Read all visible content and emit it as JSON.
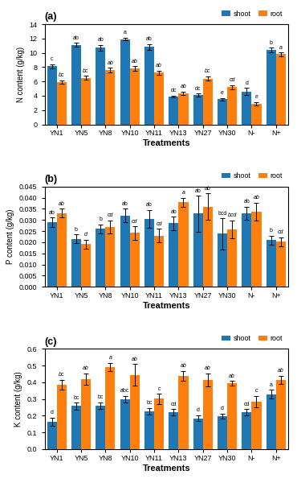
{
  "chart_data": [
    {
      "type": "bar",
      "title": "(a)",
      "x_label": "Treatments",
      "y_label": "N content (g/kg)",
      "categories": [
        "YN1",
        "YN5",
        "YN8",
        "YN10",
        "YN11",
        "YN13",
        "YN27",
        "YN30",
        "N-",
        "N+"
      ],
      "series": [
        {
          "name": "shoot",
          "values": [
            8.1,
            11.1,
            10.7,
            11.9,
            10.8,
            3.9,
            4.1,
            3.5,
            4.6,
            10.4
          ],
          "errors": [
            0.3,
            0.3,
            0.4,
            0.2,
            0.4,
            0.15,
            0.2,
            0.2,
            0.5,
            0.3
          ],
          "annotations": [
            "c",
            "ab",
            "ab",
            "a",
            "ab",
            "dc",
            "dc",
            "e",
            "d",
            "b"
          ]
        },
        {
          "name": "root",
          "values": [
            5.9,
            6.5,
            7.6,
            7.8,
            7.2,
            4.35,
            6.4,
            5.2,
            2.9,
            9.8
          ],
          "errors": [
            0.25,
            0.3,
            0.3,
            0.3,
            0.3,
            0.25,
            0.3,
            0.3,
            0.2,
            0.25
          ],
          "annotations": [
            "bc",
            "bc",
            "ab",
            "ab",
            "ab",
            "ab",
            "bc",
            "cd",
            "e",
            "a"
          ]
        }
      ],
      "ylim": [
        0,
        14
      ],
      "yticks": [
        0,
        2,
        4,
        6,
        8,
        10,
        12,
        14
      ],
      "legend": "lower right"
    },
    {
      "type": "bar",
      "title": "(b)",
      "x_label": "Treatments",
      "y_label": "P content (g/kg)",
      "categories": [
        "YN1",
        "YN5",
        "YN8",
        "YN10",
        "YN11",
        "YN13",
        "YN27",
        "YN30",
        "N-",
        "N+"
      ],
      "series": [
        {
          "name": "shoot",
          "values": [
            0.029,
            0.0215,
            0.026,
            0.032,
            0.0305,
            0.0285,
            0.0328,
            0.0238,
            0.033,
            0.021
          ],
          "errors": [
            0.002,
            0.002,
            0.002,
            0.003,
            0.004,
            0.003,
            0.008,
            0.007,
            0.003,
            0.002
          ],
          "annotations": [
            "ab",
            "b",
            "b",
            "ab",
            "ab",
            "ab",
            "ab",
            "bcd",
            "ab",
            "b"
          ]
        },
        {
          "name": "root",
          "values": [
            0.033,
            0.0192,
            0.0268,
            0.0242,
            0.023,
            0.038,
            0.036,
            0.0258,
            0.0338,
            0.0202
          ],
          "errors": [
            0.002,
            0.002,
            0.003,
            0.003,
            0.003,
            0.002,
            0.006,
            0.004,
            0.004,
            0.002
          ],
          "annotations": [
            "ab",
            "d",
            "cd",
            "cd",
            "cd",
            "a",
            "ab",
            "bcd",
            "ab",
            "cd"
          ]
        }
      ],
      "ylim": [
        0,
        0.045
      ],
      "yticks": [
        {
          "value": 0,
          "label": "0.000"
        },
        0.005,
        {
          "value": 0.01,
          "label": "0.010"
        },
        0.015,
        {
          "value": 0.02,
          "label": "0.020"
        },
        0.025,
        {
          "value": 0.03,
          "label": "0.030"
        },
        0.035,
        {
          "value": 0.04,
          "label": "0.040"
        },
        0.045
      ],
      "legend": "lower right"
    },
    {
      "type": "bar",
      "title": "(c)",
      "x_label": "Treatments",
      "y_label": "K content (g/kg)",
      "categories": [
        "YN1",
        "YN5",
        "YN8",
        "YN10",
        "YN11",
        "YN13",
        "YN27",
        "YN30",
        "N-",
        "N+"
      ],
      "series": [
        {
          "name": "shoot",
          "values": [
            0.165,
            0.258,
            0.26,
            0.3,
            0.228,
            0.22,
            0.185,
            0.198,
            0.22,
            0.33
          ],
          "errors": [
            0.025,
            0.02,
            0.02,
            0.02,
            0.02,
            0.02,
            0.018,
            0.015,
            0.02,
            0.025
          ],
          "annotations": [
            "d",
            "bc",
            "bc",
            "abc",
            "bc",
            "cd",
            "d",
            "d",
            "cd",
            "a"
          ]
        },
        {
          "name": "root",
          "values": [
            0.385,
            0.42,
            0.492,
            0.445,
            0.302,
            0.438,
            0.415,
            0.394,
            0.285,
            0.415
          ],
          "errors": [
            0.03,
            0.035,
            0.025,
            0.065,
            0.03,
            0.03,
            0.04,
            0.015,
            0.035,
            0.025
          ],
          "annotations": [
            "bc",
            "ab",
            "a",
            "ab",
            "c",
            "ab",
            "ab",
            "ab",
            "c",
            "ab"
          ]
        }
      ],
      "ylim": [
        0,
        0.6
      ],
      "yticks": [
        {
          "value": 0,
          "label": "0.0"
        },
        0.1,
        0.2,
        0.3,
        0.4,
        0.5,
        0.6
      ],
      "legend": "lower right"
    }
  ]
}
